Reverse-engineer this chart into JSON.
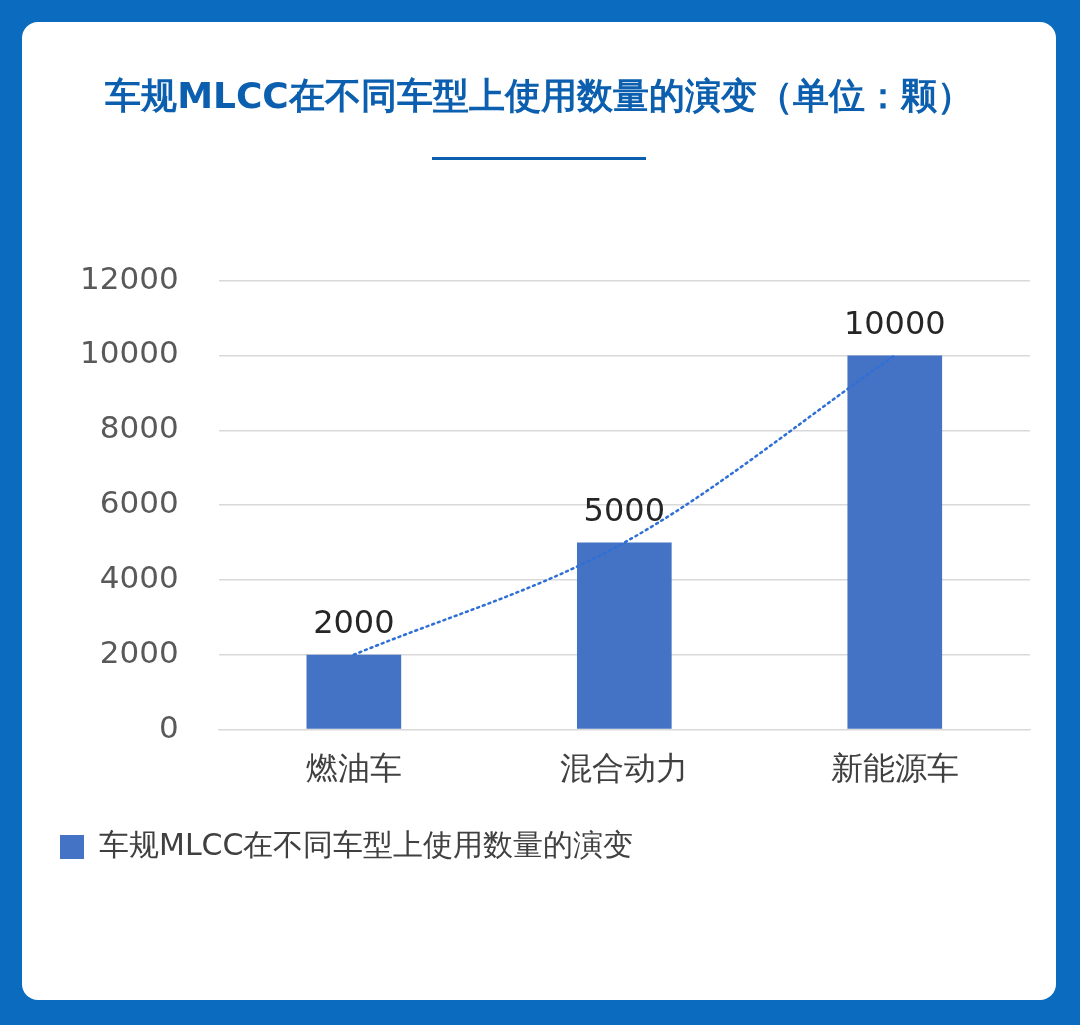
{
  "chart_data": {
    "type": "bar",
    "title": "车规MLCC在不同车型上使用数量的演变（单位：颗）",
    "categories": [
      "燃油车",
      "混合动力",
      "新能源车"
    ],
    "series": [
      {
        "name": "车规MLCC在不同车型上使用数量的演变",
        "color": "#4472c4",
        "values": [
          2000,
          5000,
          10000
        ],
        "value_labels": [
          "2000",
          "5000",
          "10000"
        ]
      },
      {
        "type": "line",
        "color": "#2f6fd6",
        "line_style": "dotted",
        "marker": "none",
        "x": [
          "燃油车",
          "混合动力",
          "新能源车"
        ],
        "values": [
          2000,
          5000,
          10000
        ]
      }
    ],
    "ylim": [
      0,
      12000
    ],
    "yticks": [
      0,
      2000,
      4000,
      6000,
      8000,
      10000,
      12000
    ],
    "grid": "y",
    "legend": "bottom"
  }
}
